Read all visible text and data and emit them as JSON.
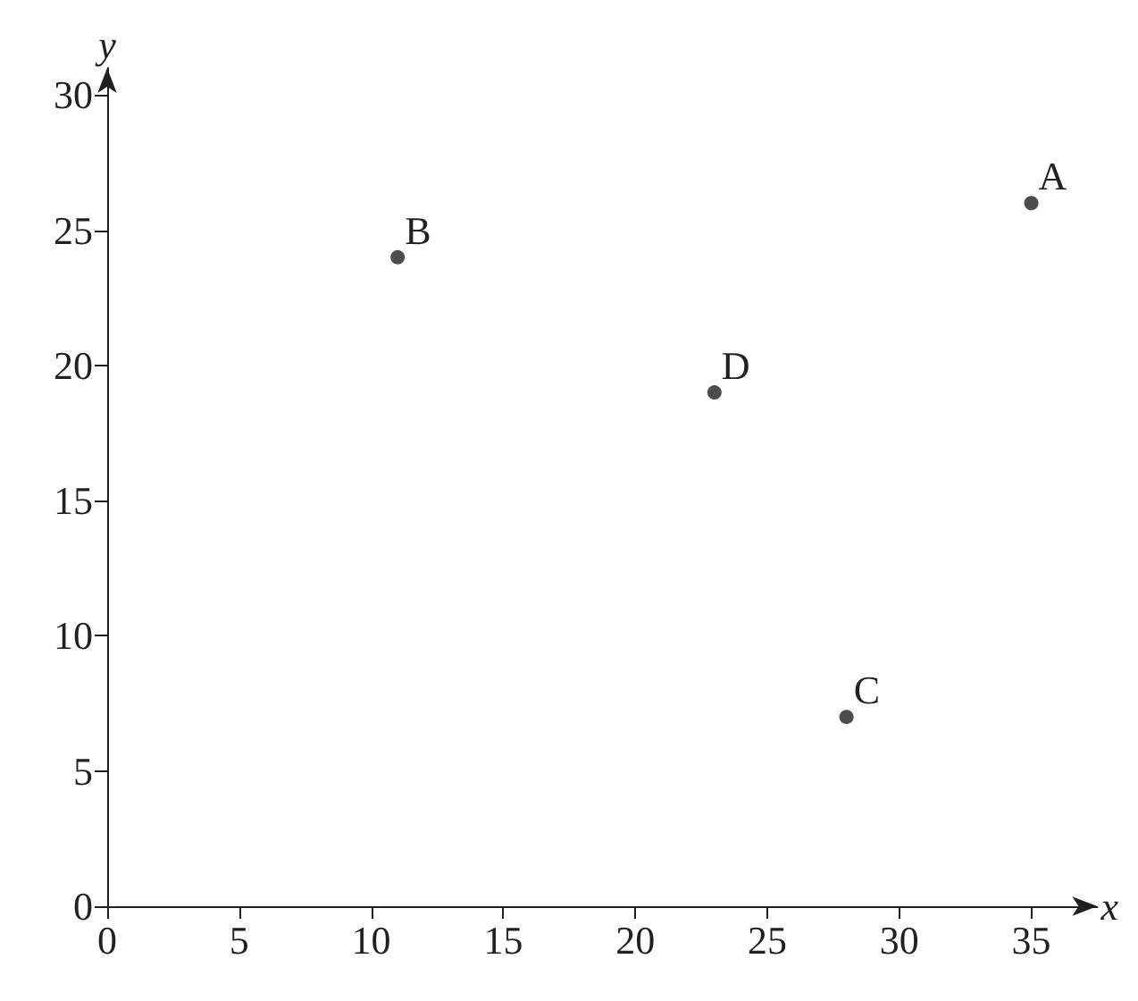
{
  "chart_data": {
    "type": "scatter",
    "xlabel": "x",
    "ylabel": "y",
    "x": [
      35,
      11,
      28,
      23
    ],
    "values": [
      26,
      24,
      7,
      19
    ],
    "color": "#231f20",
    "marker": "circle",
    "xlim": [
      0,
      37.5
    ],
    "ylim": [
      0,
      31
    ],
    "xticks": [
      0,
      5,
      10,
      15,
      20,
      25,
      30,
      35
    ],
    "yticks": [
      0,
      5,
      10,
      15,
      20,
      25,
      30
    ],
    "grid": false,
    "annotations": [
      {
        "text": "A",
        "x": 35,
        "y": 26
      },
      {
        "text": "B",
        "x": 11,
        "y": 24
      },
      {
        "text": "C",
        "x": 28,
        "y": 7
      },
      {
        "text": "D",
        "x": 23,
        "y": 19
      }
    ]
  }
}
